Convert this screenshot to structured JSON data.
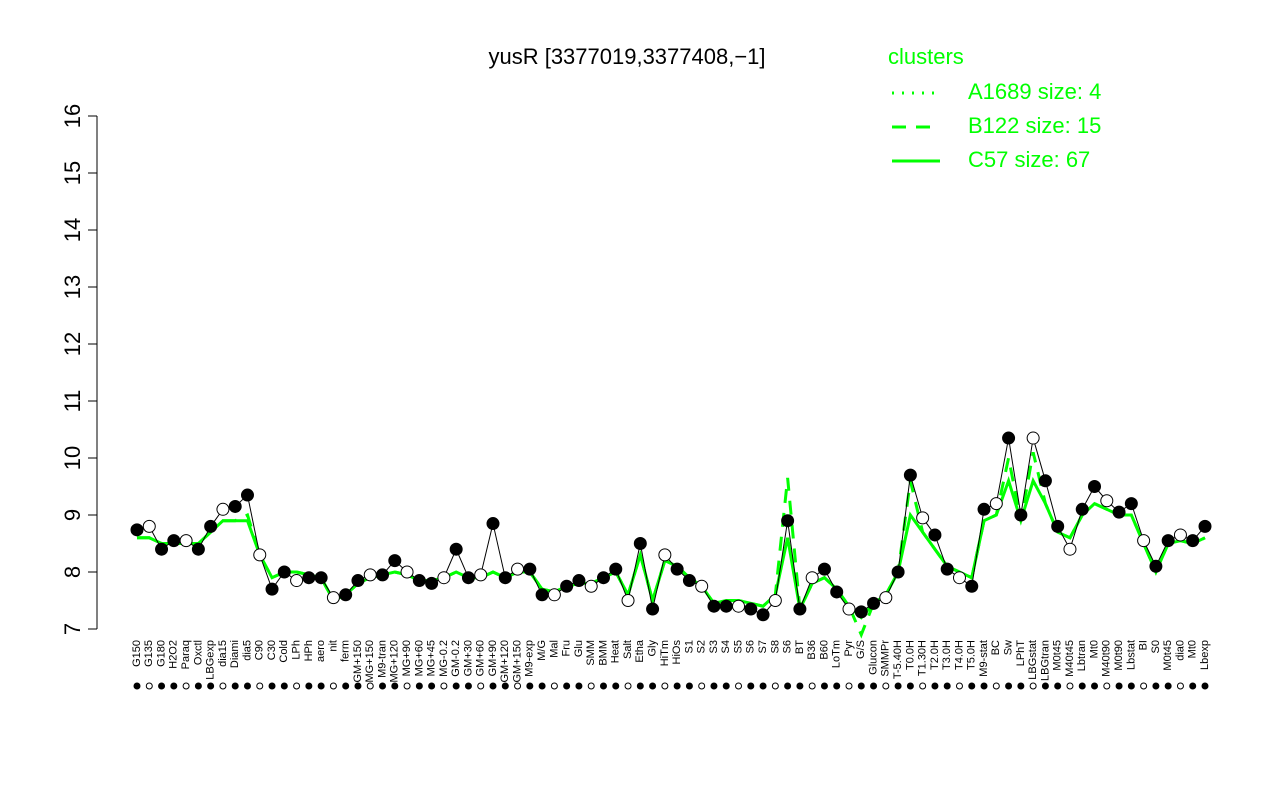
{
  "chart_data": {
    "type": "line",
    "title": "yusR [3377019,3377408,−1]",
    "legend_title": "clusters",
    "legend_position": "top-right",
    "categories": [
      "G150",
      "G135",
      "G180",
      "H2O2",
      "Paraq",
      "Oxctl",
      "LBGexp",
      "dia15",
      "Diami",
      "dia5",
      "C90",
      "C30",
      "Cold",
      "LPh",
      "HPh",
      "aero",
      "nit",
      "ferm",
      "GM+150",
      "MG+150",
      "M9-tran",
      "MG+120",
      "MG+90",
      "MG+60",
      "MG+45",
      "MG-0.2",
      "GM-0.2",
      "GM+30",
      "GM+60",
      "GM+90",
      "GM+120",
      "GM+150",
      "M9-exp",
      "M/G",
      "Mal",
      "Fru",
      "Glu",
      "SMM",
      "BMM",
      "Heat",
      "Salt",
      "Etha",
      "Gly",
      "HiTm",
      "HiOs",
      "S1",
      "S2",
      "S3",
      "S4",
      "S5",
      "S6",
      "S7",
      "S8",
      "S6",
      "BT",
      "B36",
      "B60",
      "LoTm",
      "Pyr",
      "G/S",
      "Glucon",
      "SMMPr",
      "T-5.40H",
      "T0.0H",
      "T1.30H",
      "T2.0H",
      "T3.0H",
      "T4.0H",
      "T5.0H",
      "M9-stat",
      "BC",
      "Sw",
      "LPhT",
      "LBGstat",
      "LBGtran",
      "M0t45",
      "M40t45",
      "Lbtran",
      "Mt0",
      "M40t90",
      "M0t90",
      "Lbstat",
      "BI",
      "S0",
      "M0t45",
      "dia0",
      "Mt0",
      "Lbexp"
    ],
    "points": {
      "color": "#000000",
      "values": [
        8.74,
        8.8,
        8.4,
        8.55,
        8.55,
        8.4,
        8.8,
        9.1,
        9.15,
        9.35,
        8.3,
        7.7,
        8.0,
        7.85,
        7.9,
        7.9,
        7.55,
        7.6,
        7.85,
        7.95,
        7.95,
        8.2,
        8.0,
        7.85,
        7.8,
        7.9,
        8.4,
        7.9,
        7.95,
        8.85,
        7.9,
        8.05,
        8.05,
        7.6,
        7.6,
        7.75,
        7.85,
        7.75,
        7.9,
        8.05,
        7.5,
        8.5,
        7.35,
        8.3,
        8.05,
        7.85,
        7.75,
        7.4,
        7.4,
        7.4,
        7.35,
        7.25,
        7.5,
        8.9,
        7.35,
        7.9,
        8.05,
        7.65,
        7.35,
        7.3,
        7.45,
        7.55,
        8.0,
        9.7,
        8.95,
        8.65,
        8.05,
        7.9,
        7.75,
        9.1,
        9.2,
        10.35,
        9.0,
        10.35,
        9.6,
        8.8,
        8.4,
        9.1,
        9.5,
        9.25,
        9.05,
        9.2,
        8.55,
        8.1,
        8.55,
        8.65,
        8.55,
        8.8
      ]
    },
    "series": [
      {
        "name": "A1689 size: 4",
        "color": "#00ff00",
        "dash": "dotted"
      },
      {
        "name": "B122 size: 15",
        "color": "#00ff00",
        "dash": "dashed",
        "values": [
          8.6,
          8.6,
          8.5,
          8.5,
          8.5,
          8.5,
          8.7,
          8.9,
          8.9,
          9.0,
          8.3,
          7.9,
          8.0,
          8.0,
          7.95,
          7.9,
          7.5,
          7.6,
          7.8,
          7.9,
          7.95,
          8.0,
          7.95,
          7.85,
          7.85,
          7.9,
          8.0,
          7.9,
          7.9,
          8.0,
          7.9,
          8.0,
          8.0,
          7.7,
          7.65,
          7.75,
          7.8,
          7.8,
          7.9,
          8.0,
          7.6,
          8.3,
          7.5,
          8.2,
          8.1,
          7.9,
          7.75,
          7.45,
          7.5,
          7.5,
          7.45,
          7.4,
          7.6,
          9.65,
          7.35,
          7.8,
          7.9,
          7.7,
          7.4,
          6.9,
          7.45,
          7.6,
          8.0,
          9.6,
          8.7,
          8.4,
          8.1,
          8.0,
          7.9,
          8.9,
          9.0,
          10.0,
          8.9,
          10.1,
          9.2,
          8.7,
          8.6,
          9.0,
          9.2,
          9.1,
          9.0,
          9.0,
          8.5,
          8.0,
          8.5,
          8.55,
          8.5,
          8.6
        ]
      },
      {
        "name": "C57 size: 67",
        "color": "#00ff00",
        "dash": "solid",
        "values": [
          8.6,
          8.6,
          8.5,
          8.5,
          8.5,
          8.5,
          8.7,
          8.9,
          8.9,
          8.9,
          8.3,
          7.9,
          8.0,
          8.0,
          7.95,
          7.9,
          7.5,
          7.6,
          7.8,
          7.9,
          7.95,
          8.0,
          7.95,
          7.85,
          7.85,
          7.9,
          8.0,
          7.9,
          7.9,
          8.0,
          7.9,
          8.0,
          8.0,
          7.7,
          7.65,
          7.75,
          7.8,
          7.8,
          7.9,
          8.0,
          7.6,
          8.3,
          7.5,
          8.2,
          8.1,
          7.9,
          7.75,
          7.45,
          7.5,
          7.5,
          7.45,
          7.4,
          7.6,
          8.6,
          7.35,
          7.8,
          7.9,
          7.7,
          7.4,
          7.2,
          7.45,
          7.6,
          8.0,
          9.0,
          8.7,
          8.4,
          8.1,
          8.0,
          7.9,
          8.9,
          9.0,
          9.6,
          8.9,
          9.6,
          9.2,
          8.7,
          8.6,
          9.0,
          9.2,
          9.1,
          9.0,
          9.0,
          8.5,
          8.0,
          8.5,
          8.55,
          8.5,
          8.6
        ]
      }
    ],
    "ylim": [
      7,
      16
    ],
    "yticks": [
      7,
      8,
      9,
      10,
      11,
      12,
      13,
      14,
      15,
      16
    ]
  }
}
